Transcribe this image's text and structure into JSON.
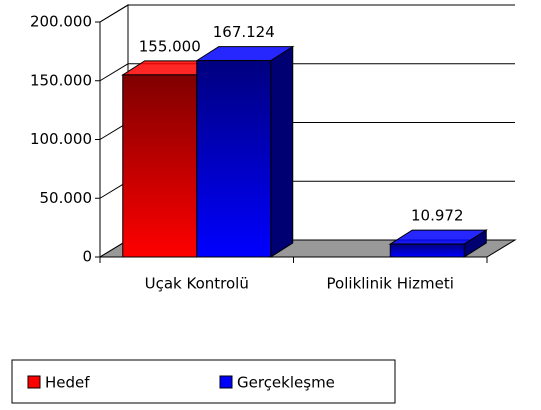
{
  "chart_data": {
    "type": "bar3d",
    "categories": [
      "Uçak Kontrolü",
      "Poliklinik Hizmeti"
    ],
    "series": [
      {
        "name": "Hedef",
        "color": "#ff0000",
        "values": [
          155000,
          null
        ],
        "value_labels": [
          "155.000",
          null
        ]
      },
      {
        "name": "Gerçekleşme",
        "color": "#0000ff",
        "values": [
          167124,
          10972
        ],
        "value_labels": [
          "167.124",
          "10.972"
        ]
      }
    ],
    "ylim": [
      0,
      200000
    ],
    "yticks": [
      0,
      {
        "value": 50000,
        "label": "50.000"
      },
      {
        "value": 100000,
        "label": "100.000"
      },
      {
        "value": 150000,
        "label": "150.000"
      },
      {
        "value": 200000,
        "label": "200.000"
      }
    ],
    "grid": true,
    "legend": "bottom"
  }
}
